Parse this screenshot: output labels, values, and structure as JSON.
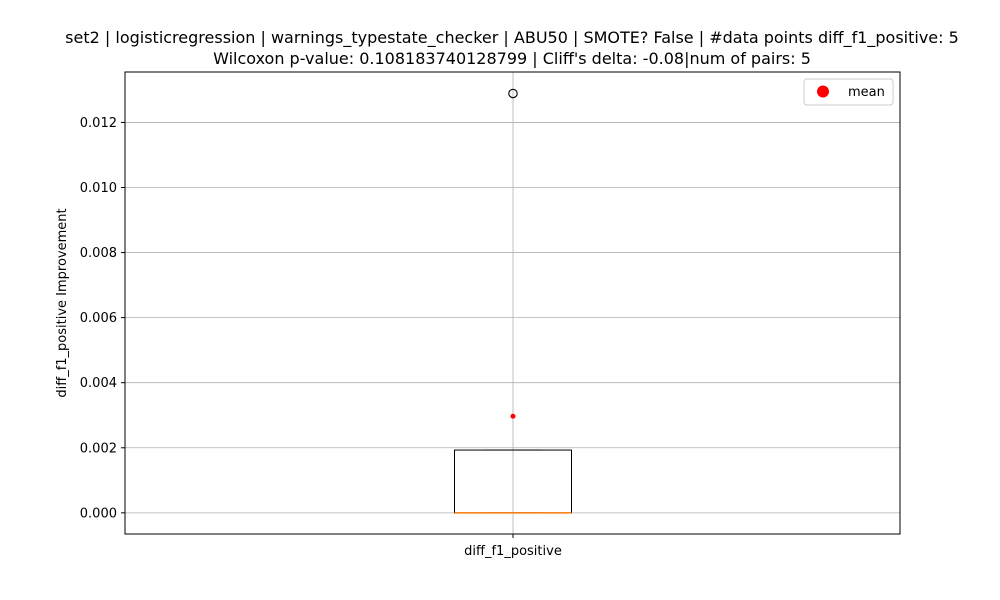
{
  "chart_data": {
    "type": "box",
    "title_line1": "set2 | logisticregression | warnings_typestate_checker | ABU50 | SMOTE? False | #data points diff_f1_positive: 5",
    "title_line2": "Wilcoxon p-value: 0.108183740128799 | Cliff's delta: -0.08|num of pairs: 5",
    "xlabel": "",
    "ylabel": "diff_f1_positive Improvement",
    "categories": [
      "diff_f1_positive"
    ],
    "ylim": [
      -0.00065,
      0.01355
    ],
    "yticks": [
      0.0,
      0.002,
      0.004,
      0.006,
      0.008,
      0.01,
      0.012
    ],
    "ytick_labels": [
      "0.000",
      "0.002",
      "0.004",
      "0.006",
      "0.008",
      "0.010",
      "0.012"
    ],
    "grid": true,
    "legend": {
      "placement": "top-right",
      "entries": [
        {
          "label": "mean",
          "color": "#ff0000"
        }
      ]
    },
    "box": {
      "whisker_low": 0.0,
      "q1": 0.0,
      "median": 0.0,
      "q3": 0.00193,
      "whisker_high": 0.00193,
      "outliers": [
        0.01289
      ],
      "mean": 0.00297
    },
    "colors": {
      "median": "#ff7f0e",
      "mean": "#ff0000",
      "grid": "#b0b0b0",
      "box": "#000000"
    }
  }
}
